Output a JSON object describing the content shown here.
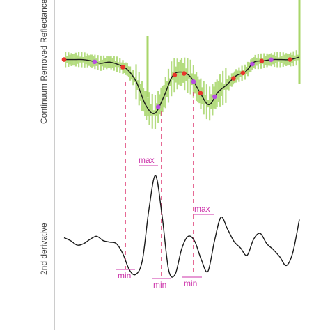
{
  "chart_data": [
    {
      "type": "line",
      "ylabel": "Continuum Removed Reflectance",
      "series": [
        {
          "values": [
            0.98,
            0.98,
            0.98,
            0.97,
            0.95,
            0.96,
            0.94,
            0.9,
            0.8,
            0.62,
            0.55,
            0.68,
            0.85,
            0.88,
            0.84,
            0.72,
            0.62,
            0.72,
            0.78,
            0.85,
            0.88,
            0.96,
            0.97,
            0.98,
            0.98,
            0.98,
            1.0
          ]
        }
      ],
      "markers_red": [
        0.0,
        0.25,
        0.47,
        0.51,
        0.58,
        0.72,
        0.76,
        0.84,
        0.96
      ],
      "markers_purple": [
        0.13,
        0.4,
        0.55,
        0.64,
        0.8,
        0.88
      ]
    },
    {
      "type": "line",
      "ylabel": "2nd derivative",
      "series": [
        {
          "values": [
            0.1,
            0.06,
            0.0,
            0.02,
            0.08,
            0.12,
            0.06,
            0.04,
            0.02,
            -0.12,
            -0.34,
            -0.4,
            -0.2,
            0.5,
            0.95,
            0.4,
            -0.34,
            -0.4,
            -0.05,
            0.12,
            0.05,
            -0.2,
            -0.36,
            0.05,
            0.38,
            0.22,
            0.05,
            -0.04,
            -0.14,
            0.08,
            0.16,
            0.02,
            -0.06,
            -0.16,
            -0.28,
            -0.1,
            0.35
          ]
        }
      ]
    }
  ],
  "annotations": {
    "max1": "max",
    "max2": "max",
    "min1": "min",
    "min2": "min",
    "min3": "min"
  }
}
